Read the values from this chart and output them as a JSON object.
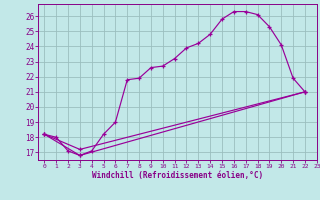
{
  "title": "",
  "xlabel": "Windchill (Refroidissement éolien,°C)",
  "bg_color": "#c2e8e8",
  "line_color": "#990099",
  "grid_color": "#9bbfbf",
  "xlim": [
    -0.5,
    23
  ],
  "ylim": [
    16.5,
    26.8
  ],
  "yticks": [
    17,
    18,
    19,
    20,
    21,
    22,
    23,
    24,
    25,
    26
  ],
  "xticks": [
    0,
    1,
    2,
    3,
    4,
    5,
    6,
    7,
    8,
    9,
    10,
    11,
    12,
    13,
    14,
    15,
    16,
    17,
    18,
    19,
    20,
    21,
    22,
    23
  ],
  "line1_x": [
    0,
    1,
    2,
    3,
    4,
    5,
    6,
    7,
    8,
    9,
    10,
    11,
    12,
    13,
    14,
    15,
    16,
    17,
    18,
    19,
    20,
    21,
    22
  ],
  "line1_y": [
    18.2,
    18.0,
    17.1,
    16.8,
    17.1,
    18.2,
    19.0,
    21.8,
    21.9,
    22.6,
    22.7,
    23.2,
    23.9,
    24.2,
    24.8,
    25.8,
    26.3,
    26.3,
    26.1,
    25.3,
    24.1,
    21.9,
    21.0
  ],
  "line2_x": [
    0,
    3,
    22
  ],
  "line2_y": [
    18.2,
    16.8,
    21.0
  ],
  "line3_x": [
    0,
    3,
    22
  ],
  "line3_y": [
    18.2,
    17.2,
    21.0
  ]
}
